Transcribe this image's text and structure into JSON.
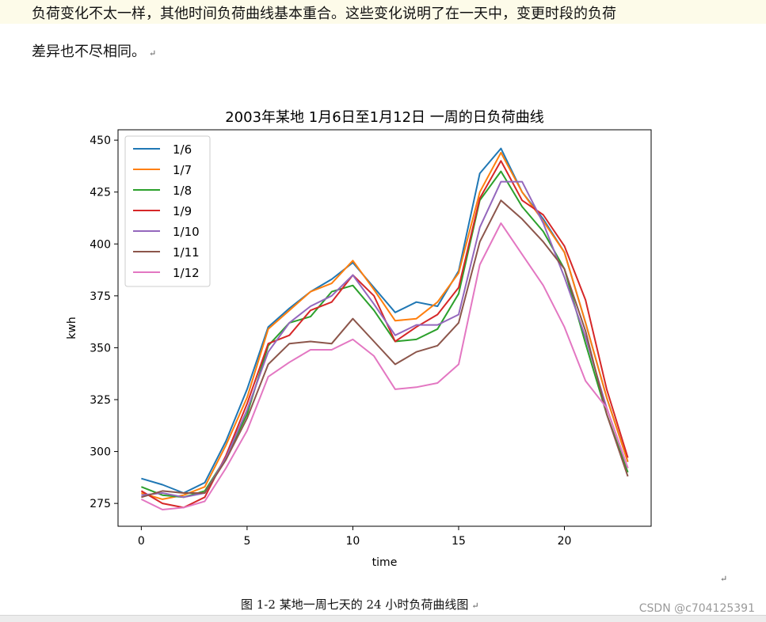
{
  "document": {
    "line1": "负荷变化不太一样，其他时间负荷曲线基本重合。这些变化说明了在一天中，变更时段的负荷",
    "line2": "差异也不尽相同。",
    "para_mark": "↵",
    "caption": "图  1-2  某地一周七天的 24 小时负荷曲线图",
    "watermark": "CSDN @c704125391"
  },
  "chart_data": {
    "type": "line",
    "title": "2003年某地 1月6日至1月12日 一周的日负荷曲线",
    "xlabel": "time",
    "ylabel": "kwh",
    "xlim": [
      -1.1,
      24.1
    ],
    "ylim": [
      264,
      455
    ],
    "xticks": [
      0,
      5,
      10,
      15,
      20
    ],
    "yticks": [
      275,
      300,
      325,
      350,
      375,
      400,
      425,
      450
    ],
    "grid": false,
    "legend_position": "upper-left",
    "x": [
      0,
      1,
      2,
      3,
      4,
      5,
      6,
      7,
      8,
      9,
      10,
      11,
      12,
      13,
      14,
      15,
      16,
      17,
      18,
      19,
      20,
      21,
      22,
      23
    ],
    "series": [
      {
        "name": "1/6",
        "color": "#1f77b4",
        "values": [
          287,
          284,
          280,
          285,
          305,
          330,
          360,
          369,
          377,
          383,
          391,
          379,
          367,
          372,
          370,
          387,
          434,
          446,
          425,
          412,
          396,
          362,
          326,
          295
        ]
      },
      {
        "name": "1/7",
        "color": "#ff7f0e",
        "values": [
          280,
          277,
          279,
          283,
          303,
          326,
          359,
          368,
          377,
          381,
          392,
          378,
          363,
          364,
          372,
          386,
          425,
          444,
          425,
          411,
          396,
          362,
          326,
          295
        ]
      },
      {
        "name": "1/8",
        "color": "#2ca02c",
        "values": [
          283,
          279,
          278,
          281,
          297,
          318,
          351,
          362,
          365,
          377,
          380,
          368,
          353,
          354,
          359,
          376,
          421,
          435,
          418,
          406,
          388,
          352,
          318,
          290
        ]
      },
      {
        "name": "1/9",
        "color": "#d62728",
        "values": [
          281,
          275,
          273,
          278,
          298,
          323,
          352,
          356,
          368,
          372,
          385,
          375,
          353,
          360,
          366,
          379,
          422,
          440,
          421,
          414,
          399,
          373,
          330,
          297
        ]
      },
      {
        "name": "1/10",
        "color": "#9467bd",
        "values": [
          279,
          280,
          278,
          280,
          297,
          320,
          348,
          362,
          370,
          375,
          385,
          371,
          356,
          361,
          361,
          366,
          408,
          430,
          430,
          410,
          384,
          355,
          321,
          292
        ]
      },
      {
        "name": "1/11",
        "color": "#8c564b",
        "values": [
          278,
          281,
          280,
          280,
          296,
          316,
          342,
          352,
          353,
          352,
          364,
          353,
          342,
          348,
          351,
          362,
          401,
          421,
          412,
          401,
          388,
          358,
          318,
          288
        ]
      },
      {
        "name": "1/12",
        "color": "#e377c2",
        "values": [
          277,
          272,
          273,
          276,
          292,
          310,
          336,
          343,
          349,
          349,
          354,
          346,
          330,
          331,
          333,
          342,
          390,
          410,
          395,
          380,
          360,
          334,
          321,
          292
        ]
      }
    ]
  }
}
